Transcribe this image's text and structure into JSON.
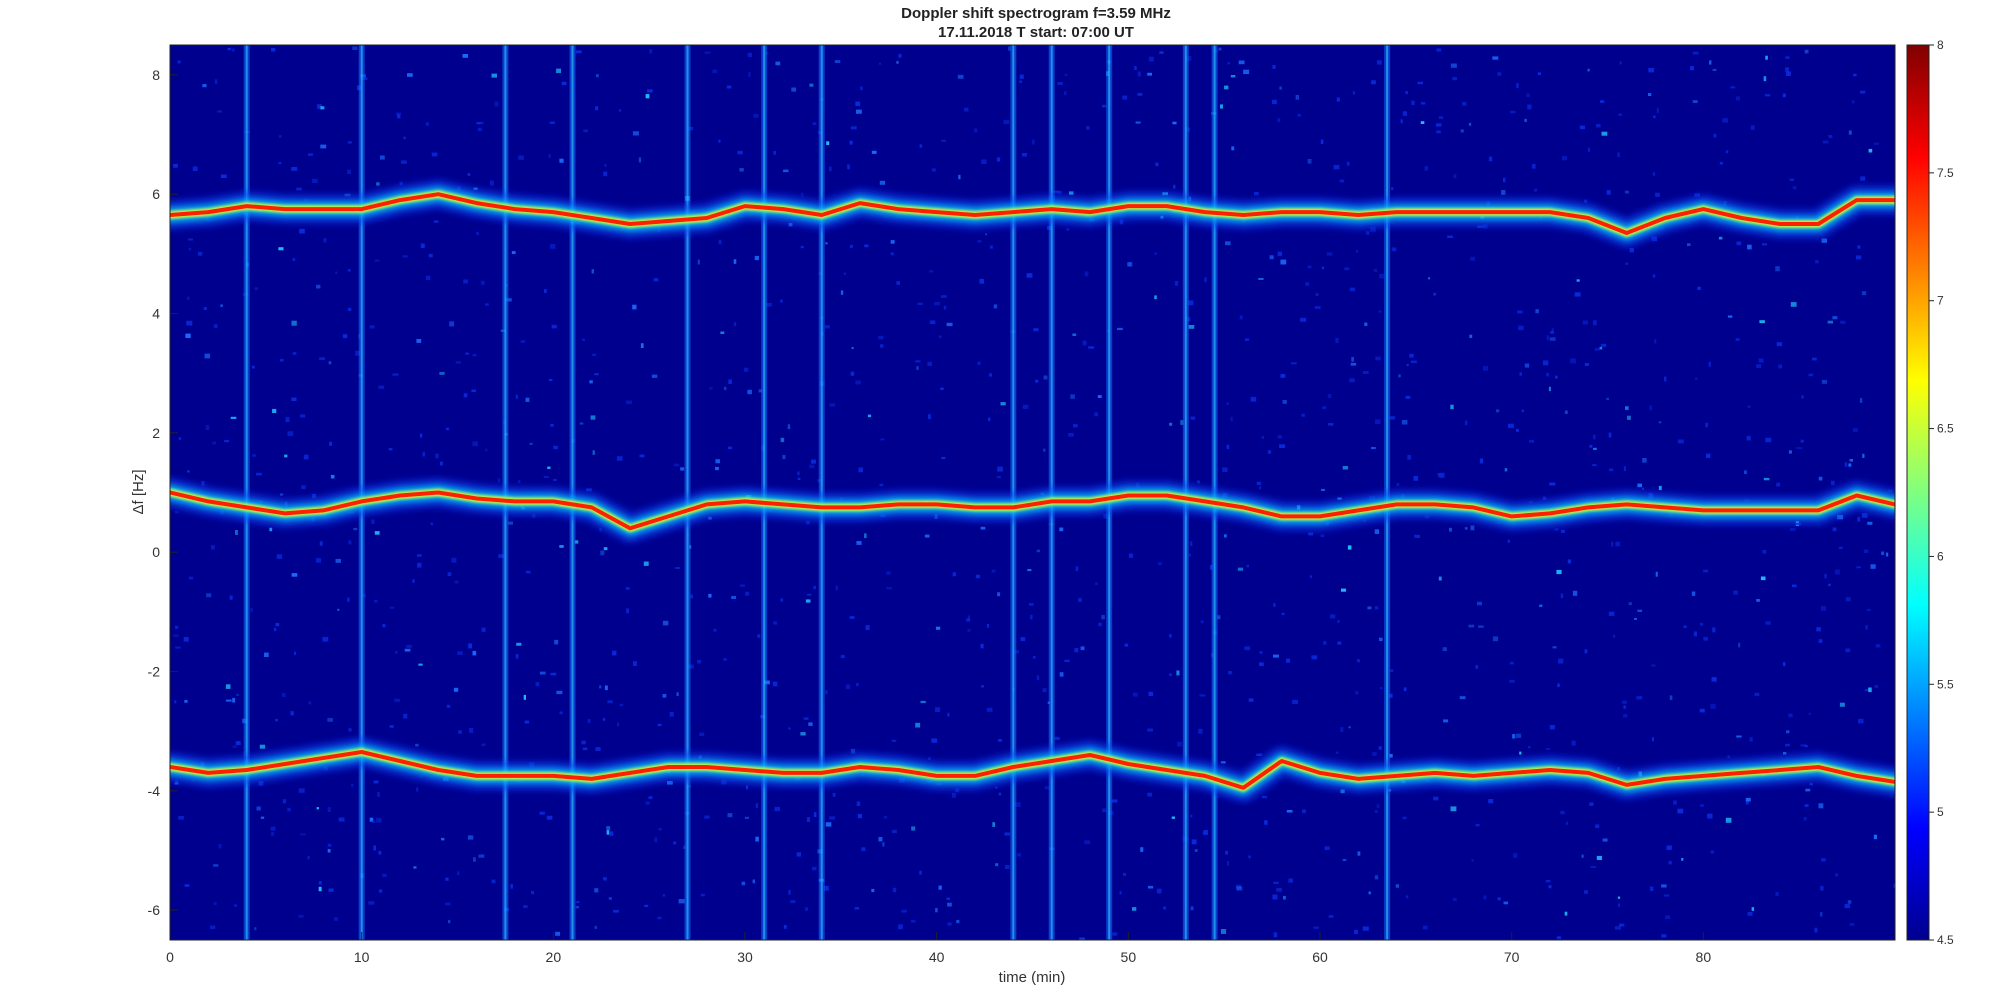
{
  "chart_data": {
    "type": "heatmap",
    "title": "Doppler shift spectrogram f=3.59 MHz",
    "subtitle": "17.11.2018   T start: 07:00 UT",
    "xlabel": "time (min)",
    "ylabel": "Δf [Hz]",
    "xlim": [
      0,
      90
    ],
    "ylim": [
      -6.5,
      8.5
    ],
    "xticks": [
      "0",
      "10",
      "20",
      "30",
      "40",
      "50",
      "60",
      "70",
      "80"
    ],
    "yticks": [
      "8",
      "6",
      "4",
      "2",
      "0",
      "-2",
      "-4",
      "-6"
    ],
    "colormap": "jet",
    "colorbar": {
      "range": [
        4.5,
        8
      ],
      "ticks": [
        "8",
        "7.5",
        "7",
        "6.5",
        "6",
        "5.5",
        "5",
        "4.5"
      ]
    },
    "background_color": "#00008f",
    "traces": [
      {
        "t": [
          0,
          2,
          4,
          6,
          8,
          10,
          12,
          14,
          16,
          18,
          20,
          22,
          24,
          26,
          28,
          30,
          32,
          34,
          36,
          38,
          40,
          42,
          44,
          46,
          48,
          50,
          52,
          54,
          56,
          58,
          60,
          62,
          64,
          66,
          68,
          70,
          72,
          74,
          76,
          78,
          80,
          82,
          84,
          86,
          88,
          90
        ],
        "f": [
          5.65,
          5.7,
          5.8,
          5.75,
          5.75,
          5.75,
          5.9,
          6.0,
          5.85,
          5.75,
          5.7,
          5.6,
          5.5,
          5.55,
          5.6,
          5.8,
          5.75,
          5.65,
          5.85,
          5.75,
          5.7,
          5.65,
          5.7,
          5.75,
          5.7,
          5.8,
          5.8,
          5.7,
          5.65,
          5.7,
          5.7,
          5.65,
          5.7,
          5.7,
          5.7,
          5.7,
          5.7,
          5.6,
          5.35,
          5.6,
          5.75,
          5.6,
          5.5,
          5.5,
          5.9,
          5.9
        ]
      },
      {
        "t": [
          0,
          2,
          4,
          6,
          8,
          10,
          12,
          14,
          16,
          18,
          20,
          22,
          24,
          26,
          28,
          30,
          32,
          34,
          36,
          38,
          40,
          42,
          44,
          46,
          48,
          50,
          52,
          54,
          56,
          58,
          60,
          62,
          64,
          66,
          68,
          70,
          72,
          74,
          76,
          78,
          80,
          82,
          84,
          86,
          88,
          90
        ],
        "f": [
          1.0,
          0.85,
          0.75,
          0.65,
          0.7,
          0.85,
          0.95,
          1.0,
          0.9,
          0.85,
          0.85,
          0.75,
          0.4,
          0.6,
          0.8,
          0.85,
          0.8,
          0.75,
          0.75,
          0.8,
          0.8,
          0.75,
          0.75,
          0.85,
          0.85,
          0.95,
          0.95,
          0.85,
          0.75,
          0.6,
          0.6,
          0.7,
          0.8,
          0.8,
          0.75,
          0.6,
          0.65,
          0.75,
          0.8,
          0.75,
          0.7,
          0.7,
          0.7,
          0.7,
          0.95,
          0.8
        ]
      },
      {
        "t": [
          0,
          2,
          4,
          6,
          8,
          10,
          12,
          14,
          16,
          18,
          20,
          22,
          24,
          26,
          28,
          30,
          32,
          34,
          36,
          38,
          40,
          42,
          44,
          46,
          48,
          50,
          52,
          54,
          56,
          58,
          60,
          62,
          64,
          66,
          68,
          70,
          72,
          74,
          76,
          78,
          80,
          82,
          84,
          86,
          88,
          90
        ],
        "f": [
          -3.6,
          -3.7,
          -3.65,
          -3.55,
          -3.45,
          -3.35,
          -3.5,
          -3.65,
          -3.75,
          -3.75,
          -3.75,
          -3.8,
          -3.7,
          -3.6,
          -3.6,
          -3.65,
          -3.7,
          -3.7,
          -3.6,
          -3.65,
          -3.75,
          -3.75,
          -3.6,
          -3.5,
          -3.4,
          -3.55,
          -3.65,
          -3.75,
          -3.95,
          -3.5,
          -3.7,
          -3.8,
          -3.75,
          -3.7,
          -3.75,
          -3.7,
          -3.65,
          -3.7,
          -3.9,
          -3.8,
          -3.75,
          -3.7,
          -3.65,
          -3.6,
          -3.75,
          -3.85
        ]
      }
    ],
    "vertical_stripes_min": [
      4,
      10,
      17.5,
      21,
      27,
      31,
      34,
      44,
      46,
      49,
      53,
      54.5,
      63.5
    ]
  }
}
